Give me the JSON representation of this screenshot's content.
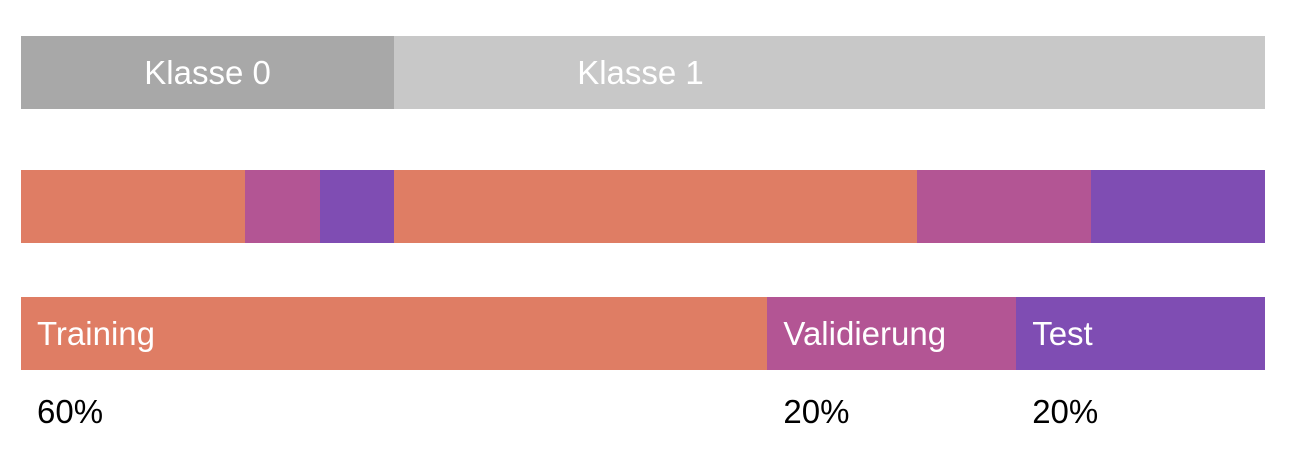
{
  "colors": {
    "class0": "#a8a8a8",
    "class1": "#c8c8c8",
    "training": "#df7d64",
    "validation": "#b35594",
    "test": "#7f4db3"
  },
  "classes": [
    {
      "label": "Klasse 0",
      "share": 0.3
    },
    {
      "label": "Klasse 1",
      "share": 0.7
    }
  ],
  "split": {
    "training": {
      "label": "Training",
      "pct": "60%",
      "value": 60
    },
    "validation": {
      "label": "Validierung",
      "pct": "20%",
      "value": 20
    },
    "test": {
      "label": "Test",
      "pct": "20%",
      "value": 20
    }
  }
}
